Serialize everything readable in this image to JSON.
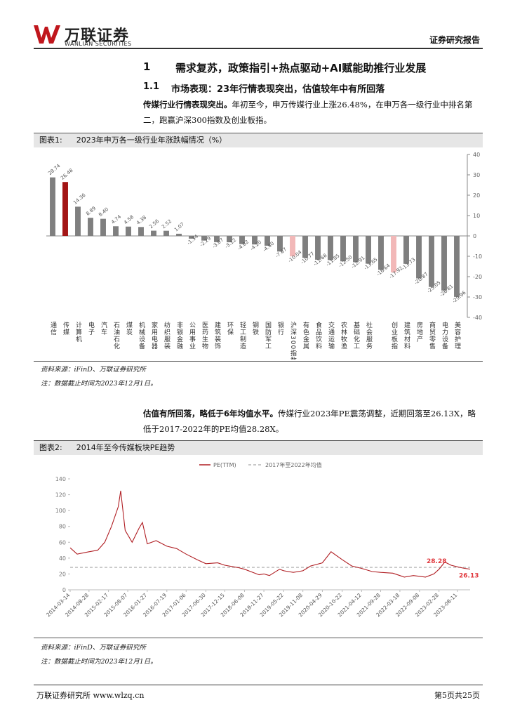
{
  "header": {
    "logo": "万联证券",
    "logo_en": "WANLIAN SECURITIES",
    "report_type": "证券研究报告"
  },
  "section": {
    "number": "1",
    "title": "需求复苏，政策指引+热点驱动+AI赋能助推行业发展"
  },
  "subsection": {
    "number": "1.1",
    "title": "市场表现：23年行情表现突出，估值较年中有所回落"
  },
  "paragraph1": {
    "lead": "传媒行业行情表现突出。",
    "text": "年初至今，申万传媒行业上涨26.48%，在申万各一级行业中排名第二，跑赢沪深300指数及创业板指。"
  },
  "paragraph2": {
    "lead": "估值有所回落，略低于6年均值水平。",
    "text": "传媒行业2023年PE震荡调整，近期回落至26.13X，略低于2017-2022年的PE均值28.28X。"
  },
  "figures": [
    {
      "label": "图表1:",
      "source": "资料来源：iFinD、万联证券研究所",
      "note": "注：数据截止时间为2023年12月1日。"
    },
    {
      "label": "图表2:",
      "source": "资料来源：iFinD、万联证券研究所",
      "note": "注：数据截止时间为2023年12月1日。"
    }
  ],
  "footer": {
    "left": "万联证券研究所 www.wlzq.cn",
    "right": "第5页共25页"
  },
  "chart_data": [
    {
      "type": "bar",
      "title": "2023年申万各一级行业年涨跌幅情况（%）",
      "categories": [
        "通信",
        "传媒",
        "计算机",
        "电子",
        "汽车",
        "石油石化",
        "煤炭",
        "机械设备",
        "家用电器",
        "纺织服装",
        "非银金融",
        "公用事业",
        "医药生物",
        "建筑装饰",
        "环保",
        "轻工制造",
        "钢铁",
        "国防军工",
        "银行",
        "沪深300指数",
        "有色金属",
        "食品饮料",
        "交通运输",
        "农林牧渔",
        "基础化工",
        "社会服务",
        null,
        "创业板指",
        "建筑材料",
        "房地产",
        "商贸零售",
        "电力设备",
        "美容护理"
      ],
      "values": [
        28.74,
        26.48,
        14.36,
        8.89,
        8.4,
        4.74,
        4.58,
        4.38,
        2.56,
        2.52,
        1.07,
        -1.34,
        -2.29,
        -3.07,
        -3.12,
        -4.02,
        -4.2,
        -4.8,
        -7.67,
        -10.04,
        -10.77,
        -11.68,
        -11.85,
        -12.5,
        -12.91,
        -13.65,
        -16.64,
        -17.92,
        -13.73,
        -20.87,
        -25.05,
        -26.81,
        -29.96
      ],
      "value_labels": [
        "28.74",
        "26.48",
        "14.36",
        "8.89",
        "8.40",
        "4.74",
        "4.58",
        "4.38",
        "2.56",
        "2.52",
        "1.07",
        "-1.34",
        "-2.29",
        "-3.07",
        "-3.12",
        "-4.02",
        "-4.20",
        "-4.80",
        "-7.67",
        "-10.04",
        "-10.77",
        "-11.68",
        "-11.85",
        "-12.50",
        "-12.91",
        "-13.65",
        "-16.64",
        "-17.92",
        "-13.73",
        "-20.87",
        "-25.05",
        "-26.81",
        "-29.96"
      ],
      "colors": [
        "#7f7f7f",
        "#a31515",
        "#7f7f7f",
        "#7f7f7f",
        "#7f7f7f",
        "#7f7f7f",
        "#7f7f7f",
        "#7f7f7f",
        "#7f7f7f",
        "#7f7f7f",
        "#7f7f7f",
        "#7f7f7f",
        "#7f7f7f",
        "#7f7f7f",
        "#7f7f7f",
        "#7f7f7f",
        "#7f7f7f",
        "#7f7f7f",
        "#7f7f7f",
        "#f2b8b8",
        "#7f7f7f",
        "#7f7f7f",
        "#7f7f7f",
        "#7f7f7f",
        "#7f7f7f",
        "#7f7f7f",
        "#7f7f7f",
        "#f2b8b8",
        "#7f7f7f",
        "#7f7f7f",
        "#7f7f7f",
        "#7f7f7f",
        "#7f7f7f"
      ],
      "ylim": [
        -40,
        40
      ],
      "yticks": [
        40,
        30,
        20,
        10,
        0,
        -10,
        -20,
        -30,
        -40
      ],
      "axis_side": "right"
    },
    {
      "type": "line",
      "title": "2014年至今传媒板块PE趋势",
      "x": [
        "2014-03-14",
        "2014-05-15",
        "2014-08-28",
        "2014-11-14",
        "2015-01-15",
        "2015-03-16",
        "2015-05-15",
        "2015-06-05",
        "2015-07-15",
        "2015-09-15",
        "2015-11-16",
        "2015-12-15",
        "2016-01-27",
        "2016-04-15",
        "2016-07-19",
        "2016-10-14",
        "2017-01-06",
        "2017-04-14",
        "2017-06-30",
        "2017-10-13",
        "2017-12-15",
        "2018-04-13",
        "2018-06-08",
        "2018-10-15",
        "2018-11-27",
        "2019-01-15",
        "2019-04-15",
        "2019-05-22",
        "2019-08-15",
        "2019-11-08",
        "2020-01-15",
        "2020-04-29",
        "2020-07-15",
        "2020-10-22",
        "2021-01-15",
        "2021-04-12",
        "2021-07-15",
        "2021-09-28",
        "2022-01-14",
        "2022-03-18",
        "2022-04-26",
        "2022-07-15",
        "2022-09-08",
        "2022-10-31",
        "2023-01-13",
        "2023-02-28",
        "2023-04-20",
        "2023-06-15",
        "2023-08-11",
        "2023-10-13",
        "2023-12-01"
      ],
      "series": [
        {
          "name": "PE(TTM)",
          "color": "#b01e23",
          "values": [
            53,
            45,
            48,
            50,
            60,
            80,
            105,
            125,
            75,
            60,
            78,
            85,
            58,
            62,
            55,
            52,
            45,
            38,
            33,
            34,
            31,
            28,
            26,
            19,
            20,
            18,
            26,
            24,
            22,
            24,
            30,
            34,
            48,
            38,
            30,
            27,
            23,
            22,
            21,
            18,
            16,
            18,
            17,
            16,
            20,
            26,
            35,
            31,
            29,
            27,
            26.13
          ]
        }
      ],
      "reference": {
        "name": "2017年至2022年均值",
        "value": 28.28,
        "color": "#a6a6a6"
      },
      "annotations": [
        {
          "label": "28.28",
          "value": 28.28
        },
        {
          "label": "26.13",
          "value": 26.13
        }
      ],
      "annotation_color": "#e0393e",
      "xlim": [
        "2014-03-14",
        "2023-12-01"
      ],
      "xticks": [
        "2014-03-14",
        "2014-08-28",
        "2015-02-17",
        "2015-08-07",
        "2016-01-27",
        "2016-07-19",
        "2017-01-06",
        "2017-06-30",
        "2017-12-15",
        "2018-06-08",
        "2018-11-27",
        "2019-05-22",
        "2019-11-08",
        "2020-04-29",
        "2020-10-22",
        "2021-04-12",
        "2021-09-28",
        "2022-03-18",
        "2022-09-08",
        "2023-02-28",
        "2023-08-11"
      ],
      "ylim": [
        0,
        140
      ],
      "yticks": [
        0,
        20,
        40,
        60,
        80,
        100,
        120,
        140
      ]
    }
  ]
}
